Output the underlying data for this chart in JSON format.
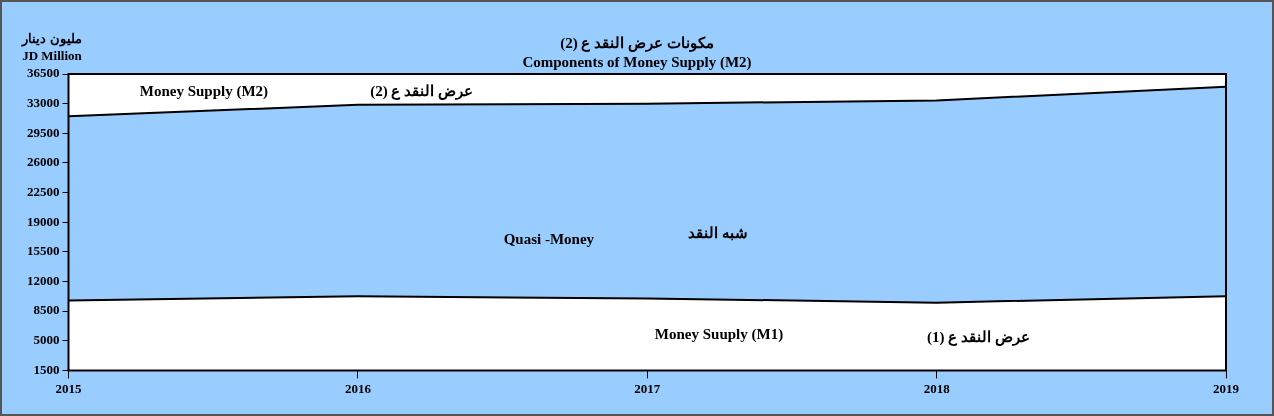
{
  "chart_data": {
    "type": "area",
    "title": "مكونات عرض النقد ع (2)",
    "subtitle": "Components of Money Supply (M2)",
    "ylabel": "مليون دينار\nJD Million",
    "categories": [
      "2015",
      "2016",
      "2017",
      "2018",
      "2019"
    ],
    "stacked": true,
    "series": [
      {
        "color": "#ffffff",
        "values": [
          9750,
          10250,
          10000,
          9500,
          10250
        ]
      },
      {
        "color": "#99ccff",
        "values": [
          21750,
          22625,
          23000,
          23875,
          24750
        ]
      }
    ],
    "ylim": [
      1500,
      36500
    ],
    "yticks": [
      1500,
      5000,
      8500,
      12000,
      15500,
      19000,
      22500,
      26000,
      29500,
      33000,
      36500
    ],
    "legend": false,
    "annotations": [
      "Money Supply (M2)",
      "عرض النقد ع (2)",
      "Quasi -Money",
      "شبه النقد",
      "Money Suuply (M1)",
      "عرض النقد ع (1)"
    ]
  }
}
